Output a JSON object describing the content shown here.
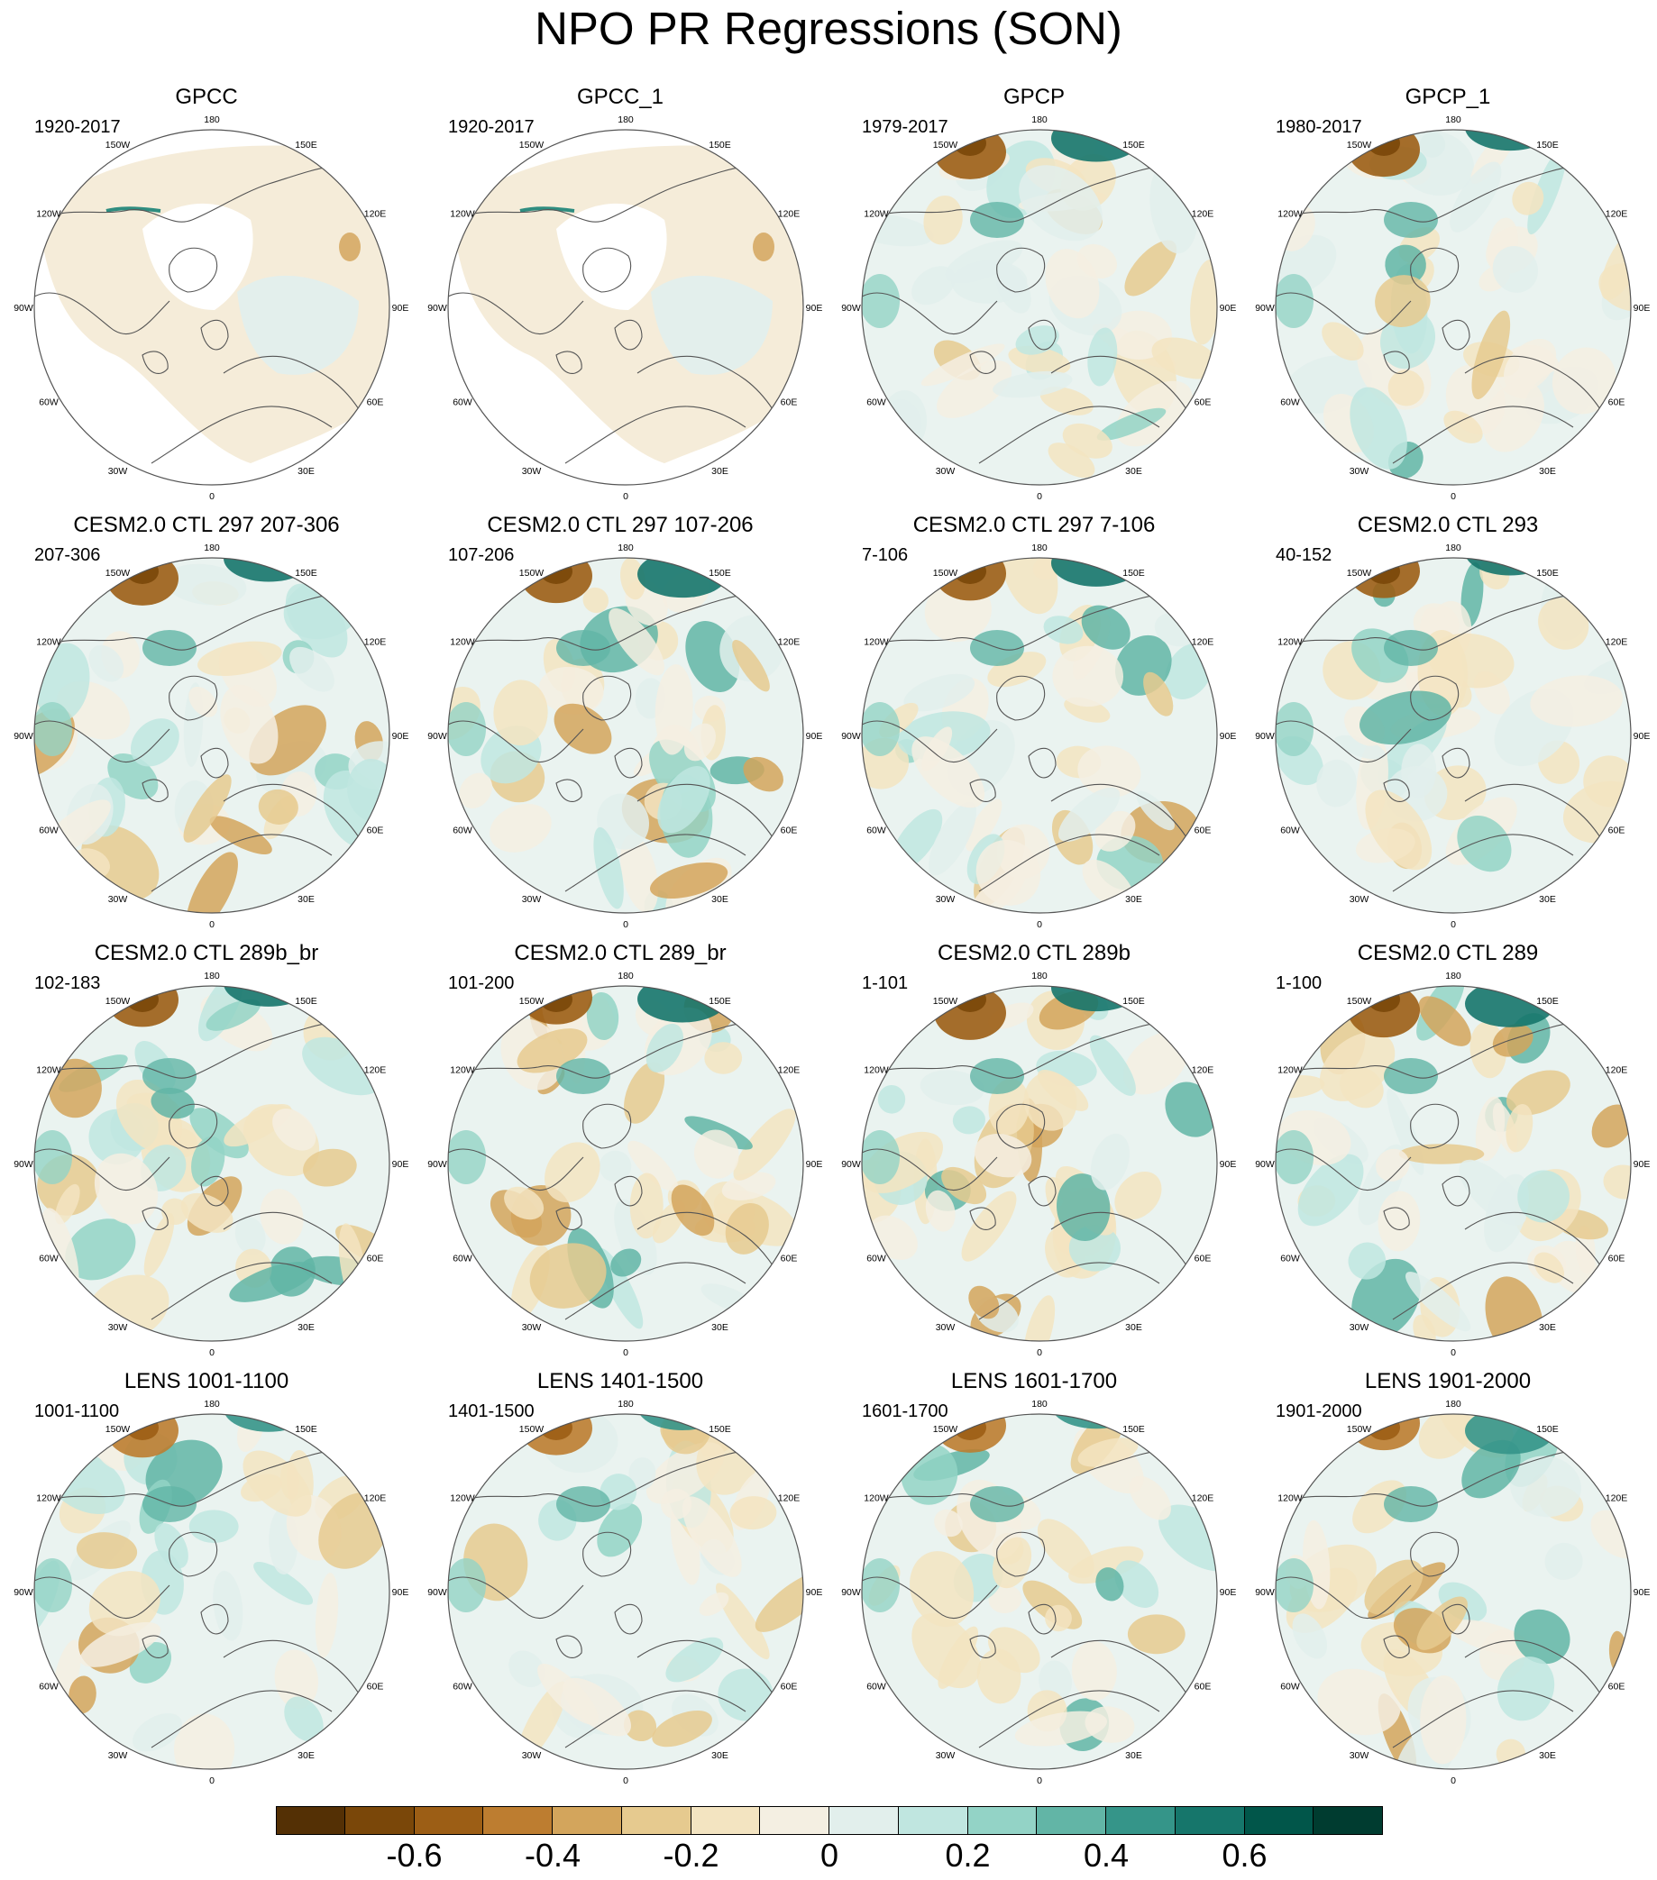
{
  "title": "NPO PR Regressions (SON)",
  "lon_labels": [
    {
      "text": "180",
      "deg": 0
    },
    {
      "text": "150E",
      "deg": 30
    },
    {
      "text": "120E",
      "deg": 60
    },
    {
      "text": "90E",
      "deg": 90
    },
    {
      "text": "60E",
      "deg": 120
    },
    {
      "text": "30E",
      "deg": 150
    },
    {
      "text": "0",
      "deg": 180
    },
    {
      "text": "30W",
      "deg": 210
    },
    {
      "text": "60W",
      "deg": 240
    },
    {
      "text": "90W",
      "deg": 270
    },
    {
      "text": "120W",
      "deg": 300
    },
    {
      "text": "150W",
      "deg": 330
    }
  ],
  "panels": [
    {
      "title": "GPCC",
      "years": "1920-2017",
      "style": "land",
      "seed": 11
    },
    {
      "title": "GPCC_1",
      "years": "1920-2017",
      "style": "land",
      "seed": 12
    },
    {
      "title": "GPCP",
      "years": "1979-2017",
      "style": "obs",
      "seed": 13
    },
    {
      "title": "GPCP_1",
      "years": "1980-2017",
      "style": "obs",
      "seed": 14
    },
    {
      "title": "CESM2.0 CTL 297 207-306",
      "years": "207-306",
      "style": "model",
      "seed": 21
    },
    {
      "title": "CESM2.0 CTL 297 107-206",
      "years": "107-206",
      "style": "model",
      "seed": 22
    },
    {
      "title": "CESM2.0 CTL 297 7-106",
      "years": "7-106",
      "style": "model",
      "seed": 23
    },
    {
      "title": "CESM2.0 CTL 293",
      "years": "40-152",
      "style": "model",
      "seed": 24
    },
    {
      "title": "CESM2.0 CTL 289b_br",
      "years": "102-183",
      "style": "model",
      "seed": 31
    },
    {
      "title": "CESM2.0 CTL 289_br",
      "years": "101-200",
      "style": "model",
      "seed": 32
    },
    {
      "title": "CESM2.0 CTL 289b",
      "years": "1-101",
      "style": "model",
      "seed": 33
    },
    {
      "title": "CESM2.0 CTL 289",
      "years": "1-100",
      "style": "model",
      "seed": 34
    },
    {
      "title": "LENS 1001-1100",
      "years": "1001-1100",
      "style": "lens",
      "seed": 41
    },
    {
      "title": "LENS 1401-1500",
      "years": "1401-1500",
      "style": "lens",
      "seed": 42
    },
    {
      "title": "LENS 1601-1700",
      "years": "1601-1700",
      "style": "lens",
      "seed": 43
    },
    {
      "title": "LENS 1901-2000",
      "years": "1901-2000",
      "style": "lens",
      "seed": 44
    }
  ],
  "colorbar": {
    "colors": [
      "#543005",
      "#7a4709",
      "#9c5e15",
      "#bd7d30",
      "#d3a55c",
      "#e6ca8f",
      "#f3e4c1",
      "#f4efe2",
      "#e2efec",
      "#c0e6e0",
      "#93d3c6",
      "#62b5a6",
      "#359589",
      "#16766b",
      "#01564a",
      "#003c30"
    ],
    "labels": [
      {
        "text": "-0.6",
        "boundary": 2
      },
      {
        "text": "-0.4",
        "boundary": 4
      },
      {
        "text": "-0.2",
        "boundary": 6
      },
      {
        "text": "0",
        "boundary": 8
      },
      {
        "text": "0.2",
        "boundary": 10
      },
      {
        "text": "0.4",
        "boundary": 12
      },
      {
        "text": "0.6",
        "boundary": 14
      }
    ]
  }
}
